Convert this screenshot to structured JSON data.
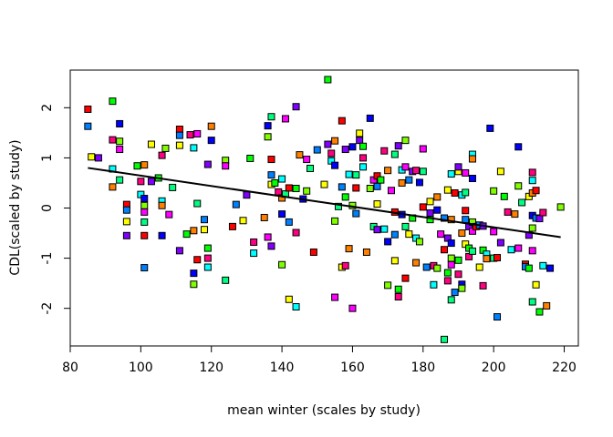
{
  "chart_data": {
    "type": "scatter",
    "title": "",
    "xlabel": "mean winter (scales by study)",
    "ylabel": "CDL(scaled by study)",
    "xlim": [
      80,
      224
    ],
    "ylim": [
      -2.75,
      2.75
    ],
    "x_ticks": [
      80,
      100,
      120,
      140,
      160,
      180,
      200,
      220
    ],
    "y_ticks": [
      -2,
      -1,
      0,
      1,
      2
    ],
    "grid": false,
    "legend": "none",
    "point_colors": [
      "#ff0000",
      "#ff8000",
      "#ffff00",
      "#80ff00",
      "#00ff00",
      "#00ff80",
      "#00ffff",
      "#0080ff",
      "#0000ff",
      "#8000ff",
      "#ff00ff",
      "#ff0080"
    ],
    "trend_line": {
      "x": [
        85,
        219
      ],
      "y": [
        0.8,
        -0.58
      ]
    },
    "points": [
      [
        85,
        1.97
      ],
      [
        85,
        1.63
      ],
      [
        86,
        1.02
      ],
      [
        88,
        1.0
      ],
      [
        92,
        2.13
      ],
      [
        92,
        1.36
      ],
      [
        92,
        0.78
      ],
      [
        92,
        0.42
      ],
      [
        94,
        1.68
      ],
      [
        94,
        1.33
      ],
      [
        94,
        1.17
      ],
      [
        94,
        0.56
      ],
      [
        96,
        0.07
      ],
      [
        96,
        -0.04
      ],
      [
        96,
        -0.27
      ],
      [
        96,
        -0.55
      ],
      [
        99,
        0.84
      ],
      [
        100,
        0.53
      ],
      [
        100,
        0.27
      ],
      [
        101,
        0.86
      ],
      [
        101,
        0.19
      ],
      [
        101,
        0.05
      ],
      [
        101,
        -0.08
      ],
      [
        101,
        -0.28
      ],
      [
        101,
        -0.55
      ],
      [
        101,
        -1.19
      ],
      [
        103,
        1.27
      ],
      [
        103,
        0.53
      ],
      [
        105,
        0.6
      ],
      [
        106,
        1.05
      ],
      [
        106,
        0.14
      ],
      [
        106,
        0.05
      ],
      [
        106,
        -0.55
      ],
      [
        107,
        1.19
      ],
      [
        108,
        -0.13
      ],
      [
        109,
        0.41
      ],
      [
        111,
        1.57
      ],
      [
        111,
        1.45
      ],
      [
        111,
        1.25
      ],
      [
        111,
        -0.85
      ],
      [
        113,
        -0.52
      ],
      [
        114,
        1.46
      ],
      [
        115,
        1.2
      ],
      [
        115,
        -0.45
      ],
      [
        115,
        -1.3
      ],
      [
        115,
        -1.52
      ],
      [
        116,
        1.48
      ],
      [
        116,
        0.09
      ],
      [
        116,
        -1.03
      ],
      [
        118,
        -0.23
      ],
      [
        118,
        -0.43
      ],
      [
        119,
        0.87
      ],
      [
        119,
        -0.8
      ],
      [
        119,
        -1.0
      ],
      [
        119,
        -1.18
      ],
      [
        120,
        1.63
      ],
      [
        120,
        1.35
      ],
      [
        124,
        0.95
      ],
      [
        124,
        0.84
      ],
      [
        124,
        -1.44
      ],
      [
        126,
        -0.37
      ],
      [
        127,
        0.07
      ],
      [
        129,
        -0.25
      ],
      [
        130,
        0.26
      ],
      [
        131,
        0.99
      ],
      [
        132,
        -0.68
      ],
      [
        132,
        -0.9
      ],
      [
        135,
        -0.19
      ],
      [
        136,
        1.64
      ],
      [
        136,
        1.42
      ],
      [
        136,
        -0.58
      ],
      [
        137,
        1.82
      ],
      [
        137,
        0.97
      ],
      [
        137,
        0.66
      ],
      [
        137,
        0.47
      ],
      [
        137,
        -0.76
      ],
      [
        138,
        0.5
      ],
      [
        139,
        0.32
      ],
      [
        140,
        0.58
      ],
      [
        140,
        0.2
      ],
      [
        140,
        -0.12
      ],
      [
        140,
        -1.13
      ],
      [
        141,
        1.78
      ],
      [
        141,
        0.28
      ],
      [
        142,
        0.4
      ],
      [
        142,
        -0.28
      ],
      [
        142,
        -1.82
      ],
      [
        144,
        2.02
      ],
      [
        144,
        0.39
      ],
      [
        144,
        -0.49
      ],
      [
        144,
        -1.97
      ],
      [
        145,
        1.06
      ],
      [
        146,
        0.18
      ],
      [
        147,
        0.34
      ],
      [
        147,
        0.97
      ],
      [
        148,
        0.79
      ],
      [
        149,
        -0.88
      ],
      [
        150,
        1.16
      ],
      [
        152,
        0.47
      ],
      [
        153,
        1.27
      ],
      [
        153,
        2.56
      ],
      [
        154,
        1.09
      ],
      [
        154,
        0.94
      ],
      [
        155,
        1.34
      ],
      [
        155,
        0.85
      ],
      [
        155,
        -0.26
      ],
      [
        155,
        -1.78
      ],
      [
        156,
        0.03
      ],
      [
        157,
        1.74
      ],
      [
        157,
        0.42
      ],
      [
        157,
        -1.18
      ],
      [
        158,
        1.17
      ],
      [
        158,
        0.22
      ],
      [
        158,
        -1.15
      ],
      [
        159,
        0.67
      ],
      [
        159,
        -0.81
      ],
      [
        160,
        1.22
      ],
      [
        160,
        0.05
      ],
      [
        160,
        -2.0
      ],
      [
        161,
        0.66
      ],
      [
        161,
        0.4
      ],
      [
        161,
        -0.11
      ],
      [
        162,
        1.49
      ],
      [
        162,
        1.35
      ],
      [
        163,
        1.23
      ],
      [
        163,
        1.0
      ],
      [
        163,
        0.82
      ],
      [
        164,
        -0.88
      ],
      [
        165,
        1.79
      ],
      [
        165,
        0.39
      ],
      [
        166,
        0.56
      ],
      [
        166,
        -0.37
      ],
      [
        167,
        0.64
      ],
      [
        167,
        0.43
      ],
      [
        167,
        0.08
      ],
      [
        167,
        -0.43
      ],
      [
        168,
        0.56
      ],
      [
        169,
        1.14
      ],
      [
        169,
        -0.42
      ],
      [
        170,
        0.75
      ],
      [
        170,
        -0.67
      ],
      [
        170,
        -1.54
      ],
      [
        171,
        0.35
      ],
      [
        172,
        1.07
      ],
      [
        172,
        -0.08
      ],
      [
        172,
        -0.53
      ],
      [
        172,
        -1.05
      ],
      [
        173,
        1.24
      ],
      [
        173,
        -1.62
      ],
      [
        173,
        -1.77
      ],
      [
        174,
        0.76
      ],
      [
        174,
        0.5
      ],
      [
        174,
        -0.13
      ],
      [
        175,
        1.35
      ],
      [
        175,
        0.82
      ],
      [
        175,
        -0.37
      ],
      [
        175,
        -1.4
      ],
      [
        176,
        0.56
      ],
      [
        176,
        -0.52
      ],
      [
        177,
        0.73
      ],
      [
        177,
        -0.2
      ],
      [
        178,
        0.75
      ],
      [
        178,
        -0.6
      ],
      [
        178,
        -1.09
      ],
      [
        179,
        0.51
      ],
      [
        179,
        -0.67
      ],
      [
        180,
        1.18
      ],
      [
        180,
        0.73
      ],
      [
        180,
        0.02
      ],
      [
        181,
        -1.18
      ],
      [
        182,
        0.13
      ],
      [
        182,
        -0.1
      ],
      [
        182,
        -0.23
      ],
      [
        183,
        -1.15
      ],
      [
        183,
        -1.53
      ],
      [
        184,
        0.22
      ],
      [
        184,
        -0.04
      ],
      [
        184,
        -1.2
      ],
      [
        185,
        -0.52
      ],
      [
        186,
        -2.62
      ],
      [
        186,
        -0.83
      ],
      [
        186,
        -0.2
      ],
      [
        187,
        0.36
      ],
      [
        187,
        -0.6
      ],
      [
        187,
        -1.29
      ],
      [
        187,
        -1.45
      ],
      [
        188,
        0.68
      ],
      [
        188,
        -0.23
      ],
      [
        188,
        -0.7
      ],
      [
        188,
        -1.0
      ],
      [
        188,
        -1.13
      ],
      [
        188,
        -1.83
      ],
      [
        189,
        0.3
      ],
      [
        189,
        -1.68
      ],
      [
        190,
        0.73
      ],
      [
        190,
        0.82
      ],
      [
        190,
        -1.04
      ],
      [
        190,
        -1.32
      ],
      [
        191,
        0.26
      ],
      [
        191,
        -0.5
      ],
      [
        191,
        -1.52
      ],
      [
        191,
        -1.6
      ],
      [
        192,
        0.7
      ],
      [
        192,
        0.31
      ],
      [
        192,
        -0.05
      ],
      [
        192,
        -0.23
      ],
      [
        192,
        -0.72
      ],
      [
        193,
        -0.37
      ],
      [
        193,
        -0.8
      ],
      [
        193,
        -0.97
      ],
      [
        194,
        1.07
      ],
      [
        194,
        0.98
      ],
      [
        194,
        0.59
      ],
      [
        194,
        -0.28
      ],
      [
        194,
        -0.46
      ],
      [
        194,
        -0.86
      ],
      [
        195,
        -0.37
      ],
      [
        196,
        -0.34
      ],
      [
        196,
        -1.18
      ],
      [
        197,
        -0.36
      ],
      [
        197,
        -0.84
      ],
      [
        197,
        -1.55
      ],
      [
        198,
        -0.92
      ],
      [
        198,
        -1.01
      ],
      [
        199,
        1.59
      ],
      [
        200,
        0.34
      ],
      [
        200,
        -0.47
      ],
      [
        200,
        -1.0
      ],
      [
        201,
        -0.99
      ],
      [
        201,
        -2.17
      ],
      [
        202,
        0.73
      ],
      [
        202,
        -0.69
      ],
      [
        203,
        0.23
      ],
      [
        204,
        -0.08
      ],
      [
        205,
        -0.83
      ],
      [
        206,
        -0.12
      ],
      [
        207,
        1.22
      ],
      [
        207,
        0.44
      ],
      [
        207,
        -0.8
      ],
      [
        208,
        0.11
      ],
      [
        209,
        -1.12
      ],
      [
        209,
        -1.17
      ],
      [
        210,
        0.23
      ],
      [
        210,
        -0.54
      ],
      [
        210,
        -1.2
      ],
      [
        211,
        0.71
      ],
      [
        211,
        0.55
      ],
      [
        211,
        0.3
      ],
      [
        211,
        -0.15
      ],
      [
        211,
        -0.4
      ],
      [
        211,
        -0.85
      ],
      [
        211,
        -1.87
      ],
      [
        212,
        0.35
      ],
      [
        212,
        -0.2
      ],
      [
        212,
        -1.53
      ],
      [
        213,
        -0.21
      ],
      [
        213,
        -2.07
      ],
      [
        214,
        -0.09
      ],
      [
        214,
        -1.15
      ],
      [
        215,
        -1.95
      ],
      [
        216,
        -1.2
      ],
      [
        219,
        0.02
      ]
    ]
  }
}
